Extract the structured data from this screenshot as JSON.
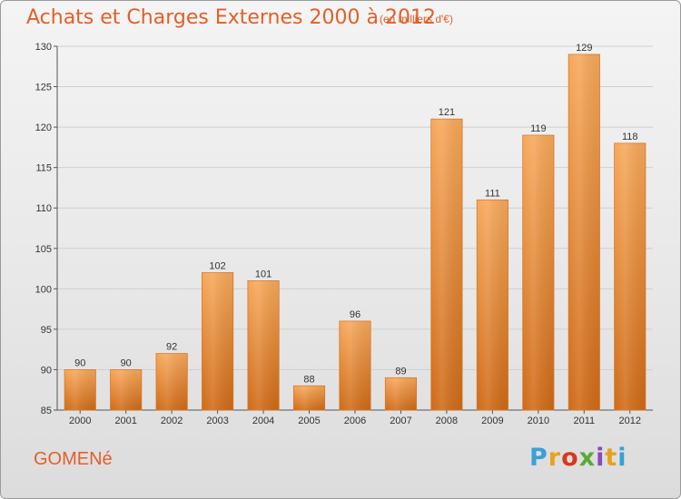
{
  "header": {
    "title": "Achats et Charges Externes 2000 à 2012",
    "subtitle": "(en milliers d'€)"
  },
  "footer": {
    "commune": "GOMENé",
    "logo_text": "Proxiti"
  },
  "colors": {
    "bar_top": "#f7a85a",
    "bar_bottom": "#cf6a16",
    "accent": "#e0602a",
    "grid": "#d0d0d0"
  },
  "chart_data": {
    "type": "bar",
    "categories": [
      "2000",
      "2001",
      "2002",
      "2003",
      "2004",
      "2005",
      "2006",
      "2007",
      "2008",
      "2009",
      "2010",
      "2011",
      "2012"
    ],
    "values": [
      90,
      90,
      92,
      102,
      101,
      88,
      96,
      89,
      121,
      111,
      119,
      129,
      118
    ],
    "ylim": [
      85,
      130
    ],
    "yticks": [
      85,
      90,
      95,
      100,
      105,
      110,
      115,
      120,
      125,
      130
    ],
    "grid": true,
    "data_labels": true
  }
}
